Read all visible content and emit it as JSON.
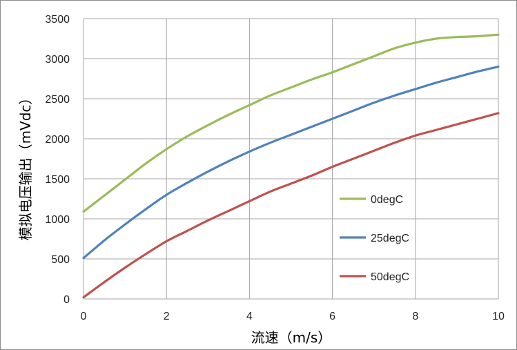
{
  "chart_data": {
    "type": "line",
    "title": "",
    "xlabel": "流速（m/s）",
    "ylabel": "模拟电压输出（mVdc）",
    "xlim": [
      0,
      10
    ],
    "ylim": [
      0,
      3500
    ],
    "xticks": [
      0,
      2,
      4,
      6,
      8,
      10
    ],
    "yticks": [
      0,
      500,
      1000,
      1500,
      2000,
      2500,
      3000,
      3500
    ],
    "xtick_labels": [
      "0",
      "2",
      "4",
      "6",
      "8",
      "10"
    ],
    "ytick_labels": [
      "0",
      "500",
      "1000",
      "1500",
      "2000",
      "2500",
      "3000",
      "3500"
    ],
    "grid": true,
    "legend_position": "right",
    "series": [
      {
        "name": "0degC",
        "color": "#9bbb59",
        "x": [
          0,
          0.5,
          1,
          1.5,
          2,
          2.5,
          3,
          3.5,
          4,
          4.5,
          5,
          5.5,
          6,
          6.5,
          7,
          7.5,
          8,
          8.5,
          9,
          9.5,
          10
        ],
        "y": [
          1090,
          1290,
          1490,
          1690,
          1870,
          2030,
          2170,
          2300,
          2420,
          2540,
          2640,
          2740,
          2830,
          2930,
          3030,
          3130,
          3200,
          3250,
          3270,
          3280,
          3300
        ]
      },
      {
        "name": "25degC",
        "color": "#4f81bd",
        "x": [
          0,
          0.5,
          1,
          1.5,
          2,
          2.5,
          3,
          3.5,
          4,
          4.5,
          5,
          5.5,
          6,
          6.5,
          7,
          7.5,
          8,
          8.5,
          9,
          9.5,
          10
        ],
        "y": [
          510,
          730,
          930,
          1120,
          1300,
          1450,
          1590,
          1720,
          1840,
          1950,
          2050,
          2150,
          2250,
          2350,
          2450,
          2540,
          2620,
          2700,
          2770,
          2840,
          2900
        ]
      },
      {
        "name": "50degC",
        "color": "#c0504d",
        "x": [
          0,
          0.5,
          1,
          1.5,
          2,
          2.5,
          3,
          3.5,
          4,
          4.5,
          5,
          5.5,
          6,
          6.5,
          7,
          7.5,
          8,
          8.5,
          9,
          9.5,
          10
        ],
        "y": [
          20,
          210,
          390,
          560,
          720,
          850,
          980,
          1100,
          1220,
          1340,
          1440,
          1540,
          1650,
          1750,
          1850,
          1950,
          2040,
          2110,
          2180,
          2250,
          2320
        ]
      }
    ]
  }
}
